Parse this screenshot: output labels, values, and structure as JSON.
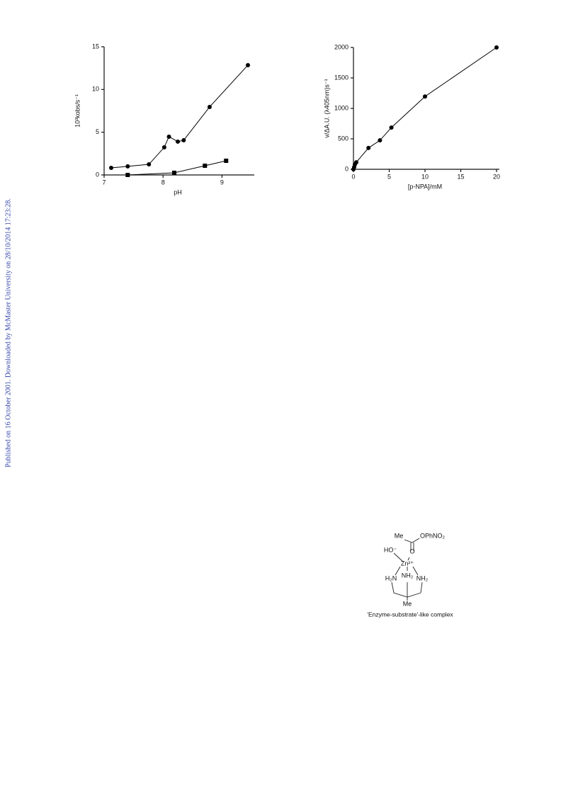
{
  "chart_data": [
    {
      "type": "line",
      "x_label": "pH",
      "y_label": "10³kobs/s⁻¹",
      "xlim": [
        7,
        9.5
      ],
      "xticks": [
        7,
        8,
        9
      ],
      "ylim": [
        0,
        15
      ],
      "yticks": [
        0,
        5,
        10,
        15
      ],
      "series": [
        {
          "marker": "circle",
          "color": "#000000",
          "x": [
            7.12,
            7.4,
            7.76,
            8.02,
            8.1,
            8.25,
            8.35,
            8.79,
            9.44
          ],
          "values": [
            0.83,
            1.0,
            1.24,
            3.23,
            4.48,
            3.9,
            4.06,
            7.96,
            12.85
          ]
        },
        {
          "marker": "square",
          "color": "#000000",
          "x": [
            7.4,
            8.19,
            8.71,
            9.07
          ],
          "values": [
            0,
            0.25,
            1.08,
            1.66
          ]
        }
      ]
    },
    {
      "type": "line",
      "x_label": "[p-NPA]/mM",
      "y_label": "v/ΔA.U. (λ405nm)s⁻¹",
      "xlim": [
        0,
        20
      ],
      "xticks": [
        0,
        5,
        10,
        15,
        20
      ],
      "ylim": [
        0,
        2000
      ],
      "yticks": [
        0,
        500,
        1000,
        1500,
        2000
      ],
      "series": [
        {
          "marker": "circle",
          "color": "#000000",
          "x": [
            0,
            0.1,
            0.2,
            0.4,
            2.1,
            3.7,
            5.3,
            10,
            20
          ],
          "values": [
            0,
            35,
            80,
            115,
            350,
            475,
            685,
            1195,
            2000
          ]
        }
      ]
    }
  ],
  "watermark": "Published on 16 October 2001. Downloaded by McMaster University on 28/10/2014 17:23:28.",
  "structure": {
    "labels": [
      "Me",
      "OPhNO₂",
      "O",
      "HO⁻",
      "Zn²⁺",
      "H₂N",
      "NH₂",
      "NH₂",
      "Me"
    ],
    "caption": "'Enzyme-substrate'-like complex"
  }
}
